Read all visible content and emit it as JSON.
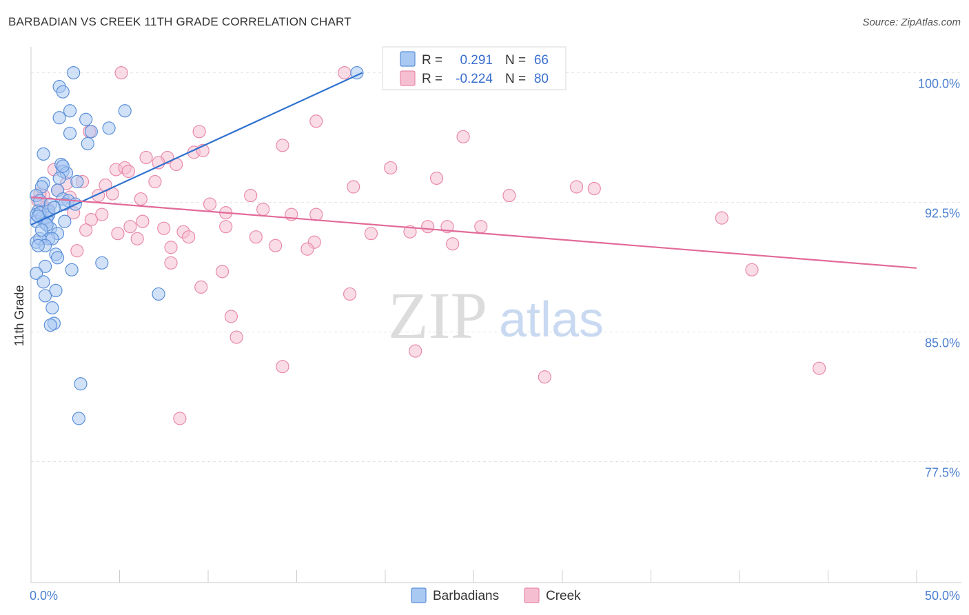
{
  "title": "BARBADIAN VS CREEK 11TH GRADE CORRELATION CHART",
  "source": "Source: ZipAtlas.com",
  "watermark": {
    "zip": "ZIP",
    "atlas": "atlas"
  },
  "legend_box": {
    "rows": [
      {
        "r_label": "R =",
        "r_value": "0.291",
        "n_label": "N =",
        "n_value": "66"
      },
      {
        "r_label": "R =",
        "r_value": "-0.224",
        "n_label": "N =",
        "n_value": "80"
      }
    ]
  },
  "bottom_legend": [
    "Barbadians",
    "Creek"
  ],
  "colors": {
    "blue_fill": "#a9c8f2",
    "blue_stroke": "#5b8fd8",
    "blue_line": "#2f72d0",
    "pink_fill": "#f6bfd1",
    "pink_stroke": "#e88aa8",
    "pink_line": "#e26a98",
    "tick_label": "#4a7fd0",
    "grid": "#e2e2e2"
  },
  "chart_data": {
    "type": "scatter",
    "title": "BARBADIAN VS CREEK 11TH GRADE CORRELATION CHART",
    "xlabel": "",
    "ylabel": "11th Grade",
    "xlim": [
      0,
      50
    ],
    "ylim": [
      70.5,
      101.5
    ],
    "x_tick_labels": [
      "0.0%",
      "50.0%"
    ],
    "y_ticks": [
      77.5,
      85.0,
      92.5,
      100.0
    ],
    "y_tick_labels": [
      "77.5%",
      "85.0%",
      "92.5%",
      "100.0%"
    ],
    "grid": true,
    "legend_position": "top-center",
    "series": [
      {
        "name": "Barbadians",
        "R": 0.291,
        "N": 66,
        "trend": [
          [
            0.0,
            91.2
          ],
          [
            18.7,
            100.0
          ]
        ],
        "points": [
          [
            2.4,
            100.0
          ],
          [
            18.4,
            100.0
          ],
          [
            1.6,
            99.2
          ],
          [
            1.8,
            98.9
          ],
          [
            2.2,
            97.8
          ],
          [
            5.3,
            97.8
          ],
          [
            1.6,
            97.4
          ],
          [
            3.1,
            97.3
          ],
          [
            4.4,
            96.8
          ],
          [
            3.4,
            96.6
          ],
          [
            2.2,
            96.5
          ],
          [
            3.2,
            95.9
          ],
          [
            0.7,
            95.3
          ],
          [
            1.7,
            94.7
          ],
          [
            1.8,
            94.3
          ],
          [
            2.0,
            94.2
          ],
          [
            1.6,
            93.9
          ],
          [
            2.6,
            93.7
          ],
          [
            0.7,
            93.6
          ],
          [
            0.6,
            93.4
          ],
          [
            1.5,
            93.2
          ],
          [
            0.3,
            92.9
          ],
          [
            1.8,
            92.7
          ],
          [
            2.1,
            92.6
          ],
          [
            0.5,
            92.6
          ],
          [
            1.1,
            92.4
          ],
          [
            1.9,
            92.4
          ],
          [
            0.4,
            92.0
          ],
          [
            0.3,
            91.8
          ],
          [
            1.0,
            91.8
          ],
          [
            0.6,
            91.6
          ],
          [
            0.9,
            91.6
          ],
          [
            0.3,
            91.4
          ],
          [
            0.8,
            91.3
          ],
          [
            1.1,
            91.0
          ],
          [
            1.5,
            90.7
          ],
          [
            1.0,
            90.4
          ],
          [
            0.3,
            90.2
          ],
          [
            0.5,
            90.4
          ],
          [
            1.2,
            90.4
          ],
          [
            0.8,
            90.0
          ],
          [
            0.4,
            90.0
          ],
          [
            1.4,
            89.5
          ],
          [
            1.5,
            89.3
          ],
          [
            4.0,
            89.0
          ],
          [
            0.8,
            88.8
          ],
          [
            2.3,
            88.6
          ],
          [
            0.3,
            88.4
          ],
          [
            0.7,
            87.9
          ],
          [
            1.4,
            87.4
          ],
          [
            0.8,
            87.1
          ],
          [
            7.2,
            87.2
          ],
          [
            1.2,
            86.4
          ],
          [
            1.3,
            85.5
          ],
          [
            1.1,
            85.4
          ],
          [
            2.8,
            82.0
          ],
          [
            2.7,
            80.0
          ],
          [
            2.5,
            92.4
          ],
          [
            1.8,
            94.6
          ],
          [
            0.5,
            91.9
          ],
          [
            1.0,
            92.0
          ],
          [
            0.9,
            91.2
          ],
          [
            1.3,
            92.2
          ],
          [
            0.6,
            90.9
          ],
          [
            1.9,
            91.4
          ],
          [
            0.4,
            91.7
          ]
        ]
      },
      {
        "name": "Creek",
        "R": -0.224,
        "N": 80,
        "trend": [
          [
            0.0,
            92.8
          ],
          [
            50.0,
            88.7
          ]
        ],
        "points": [
          [
            5.1,
            100.0
          ],
          [
            17.7,
            100.0
          ],
          [
            16.1,
            97.2
          ],
          [
            9.5,
            96.6
          ],
          [
            3.3,
            96.6
          ],
          [
            24.4,
            96.3
          ],
          [
            14.2,
            95.8
          ],
          [
            9.2,
            95.4
          ],
          [
            6.5,
            95.1
          ],
          [
            7.7,
            95.1
          ],
          [
            8.2,
            94.7
          ],
          [
            7.2,
            94.8
          ],
          [
            20.3,
            94.5
          ],
          [
            4.8,
            94.4
          ],
          [
            5.3,
            94.5
          ],
          [
            5.5,
            94.3
          ],
          [
            1.3,
            94.4
          ],
          [
            22.9,
            93.9
          ],
          [
            2.9,
            93.7
          ],
          [
            7.0,
            93.7
          ],
          [
            4.2,
            93.5
          ],
          [
            2.0,
            93.6
          ],
          [
            18.2,
            93.4
          ],
          [
            30.8,
            93.4
          ],
          [
            31.8,
            93.3
          ],
          [
            1.5,
            93.2
          ],
          [
            4.6,
            93.0
          ],
          [
            3.8,
            92.9
          ],
          [
            12.4,
            92.9
          ],
          [
            27.0,
            92.9
          ],
          [
            0.7,
            92.9
          ],
          [
            6.2,
            92.7
          ],
          [
            2.2,
            92.8
          ],
          [
            0.4,
            92.6
          ],
          [
            10.1,
            92.4
          ],
          [
            0.8,
            92.2
          ],
          [
            13.1,
            92.1
          ],
          [
            11.0,
            91.9
          ],
          [
            14.7,
            91.8
          ],
          [
            16.1,
            91.8
          ],
          [
            4.0,
            91.8
          ],
          [
            2.4,
            91.9
          ],
          [
            3.4,
            91.5
          ],
          [
            6.3,
            91.4
          ],
          [
            5.6,
            91.1
          ],
          [
            7.5,
            91.0
          ],
          [
            11.0,
            91.1
          ],
          [
            22.4,
            91.1
          ],
          [
            23.5,
            91.1
          ],
          [
            25.4,
            91.1
          ],
          [
            3.1,
            90.9
          ],
          [
            8.6,
            90.8
          ],
          [
            19.2,
            90.7
          ],
          [
            21.4,
            90.8
          ],
          [
            8.9,
            90.5
          ],
          [
            12.7,
            90.5
          ],
          [
            6.0,
            90.4
          ],
          [
            16.0,
            90.2
          ],
          [
            13.8,
            90.0
          ],
          [
            23.8,
            90.1
          ],
          [
            7.9,
            89.9
          ],
          [
            15.6,
            89.8
          ],
          [
            2.6,
            89.7
          ],
          [
            7.9,
            89.0
          ],
          [
            39.0,
            91.6
          ],
          [
            40.7,
            88.6
          ],
          [
            10.8,
            88.5
          ],
          [
            9.6,
            87.6
          ],
          [
            18.0,
            87.2
          ],
          [
            11.3,
            85.9
          ],
          [
            11.6,
            84.7
          ],
          [
            21.7,
            83.9
          ],
          [
            14.2,
            83.0
          ],
          [
            44.5,
            82.9
          ],
          [
            29.0,
            82.4
          ],
          [
            8.4,
            80.0
          ],
          [
            1.0,
            92.1
          ],
          [
            0.5,
            93.0
          ],
          [
            9.7,
            95.5
          ],
          [
            4.9,
            90.7
          ]
        ]
      }
    ]
  }
}
